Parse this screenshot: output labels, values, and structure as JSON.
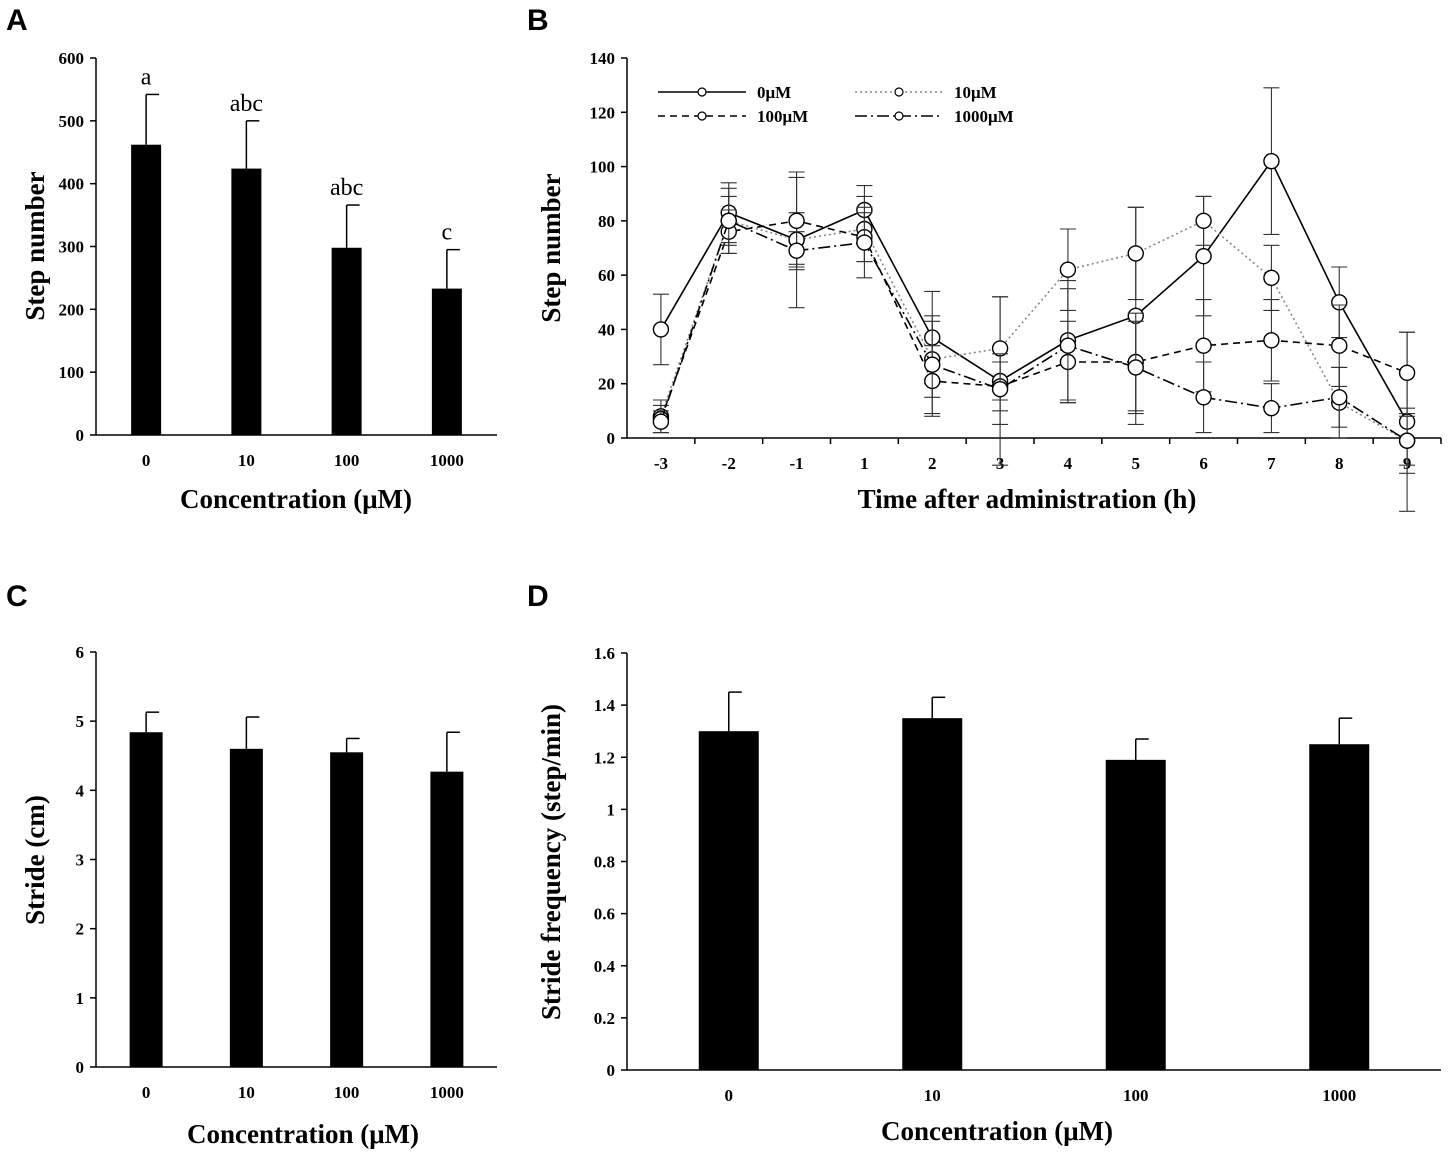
{
  "chart_data": [
    {
      "panel": "A",
      "type": "bar",
      "categories": [
        "0",
        "10",
        "100",
        "1000"
      ],
      "values": [
        462,
        424,
        298,
        233
      ],
      "errors": [
        80,
        76,
        68,
        62
      ],
      "significance_letters": [
        "a",
        "abc",
        "abc",
        "c"
      ],
      "xlabel": "Concentration (μM)",
      "ylabel": "Step number",
      "ylim": [
        0,
        600
      ],
      "yticks": [
        "0",
        "100",
        "200",
        "300",
        "400",
        "500",
        "600"
      ]
    },
    {
      "panel": "B",
      "type": "line",
      "x": [
        "-3",
        "-2",
        "-1",
        "1",
        "2",
        "3",
        "4",
        "5",
        "6",
        "7",
        "8",
        "9"
      ],
      "series": [
        {
          "name": "0μM",
          "style": "solid",
          "values": [
            40,
            83,
            73,
            84,
            37,
            21,
            36,
            45,
            67,
            102,
            50,
            6
          ],
          "errors": [
            13,
            11,
            25,
            9,
            17,
            31,
            22,
            40,
            22,
            27,
            13,
            33
          ]
        },
        {
          "name": "10μM",
          "style": "dotted",
          "values": [
            8,
            80,
            73,
            77,
            29,
            33,
            62,
            68,
            80,
            59,
            13,
            -1
          ],
          "errors": [
            6,
            12,
            10,
            12,
            14,
            19,
            15,
            17,
            9,
            12,
            13,
            12
          ]
        },
        {
          "name": "100μM",
          "style": "dashed",
          "values": [
            7,
            76,
            80,
            74,
            21,
            19,
            28,
            28,
            34,
            36,
            34,
            24
          ],
          "errors": [
            5,
            8,
            16,
            9,
            13,
            9,
            15,
            18,
            17,
            15,
            15,
            15
          ]
        },
        {
          "name": "1000μM",
          "style": "dashdot",
          "values": [
            6,
            80,
            69,
            72,
            27,
            18,
            34,
            26,
            15,
            11,
            15,
            -1
          ],
          "errors": [
            4,
            9,
            7,
            13,
            18,
            13,
            21,
            17,
            13,
            9,
            11,
            9
          ]
        }
      ],
      "xlabel": "Time after administration (h)",
      "ylabel": "Step number",
      "ylim": [
        0,
        140
      ],
      "yticks": [
        "0",
        "20",
        "40",
        "60",
        "80",
        "100",
        "120",
        "140"
      ],
      "legend_position": "top-left"
    },
    {
      "panel": "C",
      "type": "bar",
      "categories": [
        "0",
        "10",
        "100",
        "1000"
      ],
      "values": [
        4.84,
        4.6,
        4.55,
        4.27
      ],
      "errors": [
        0.29,
        0.46,
        0.2,
        0.57
      ],
      "xlabel": "Concentration (μM)",
      "ylabel": "Stride (cm)",
      "ylim": [
        0,
        6
      ],
      "yticks": [
        "0",
        "1",
        "2",
        "3",
        "4",
        "5",
        "6"
      ]
    },
    {
      "panel": "D",
      "type": "bar",
      "categories": [
        "0",
        "10",
        "100",
        "1000"
      ],
      "values": [
        1.3,
        1.35,
        1.19,
        1.25
      ],
      "errors": [
        0.15,
        0.08,
        0.08,
        0.1
      ],
      "xlabel": "Concentration (μM)",
      "ylabel": "Stride frequency (step/min)",
      "ylim": [
        0,
        1.6
      ],
      "yticks": [
        "0",
        "0.2",
        "0.4",
        "0.6",
        "0.8",
        "1",
        "1.2",
        "1.4",
        "1.6"
      ]
    }
  ]
}
